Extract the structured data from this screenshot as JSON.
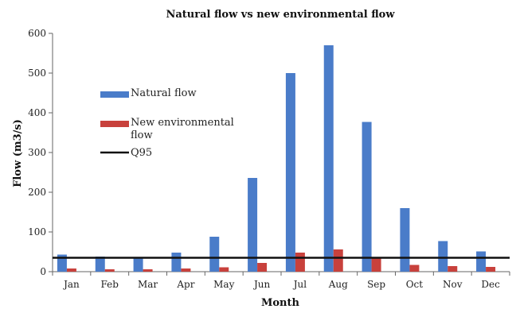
{
  "chart_data": {
    "type": "bar",
    "title": "Natural flow vs new environmental flow",
    "xlabel": "Month",
    "ylabel": "Flow (m3/s)",
    "ylim": [
      0,
      600
    ],
    "yticks": [
      0,
      100,
      200,
      300,
      400,
      500,
      600
    ],
    "grid": false,
    "legend_position": "left",
    "categories": [
      "Jan",
      "Feb",
      "Mar",
      "Apr",
      "May",
      "Jun",
      "Jul",
      "Aug",
      "Sep",
      "Oct",
      "Nov",
      "Dec"
    ],
    "series": [
      {
        "name": "Natural flow",
        "color": "#4A7CC9",
        "values": [
          43,
          38,
          37,
          48,
          88,
          236,
          500,
          570,
          377,
          160,
          77,
          51
        ]
      },
      {
        "name": "New environmental flow",
        "color": "#C8413C",
        "values": [
          8,
          6,
          6,
          8,
          11,
          22,
          48,
          56,
          35,
          17,
          14,
          12
        ]
      }
    ],
    "reference_lines": [
      {
        "name": "Q95",
        "value": 35,
        "color": "#111111"
      }
    ]
  }
}
